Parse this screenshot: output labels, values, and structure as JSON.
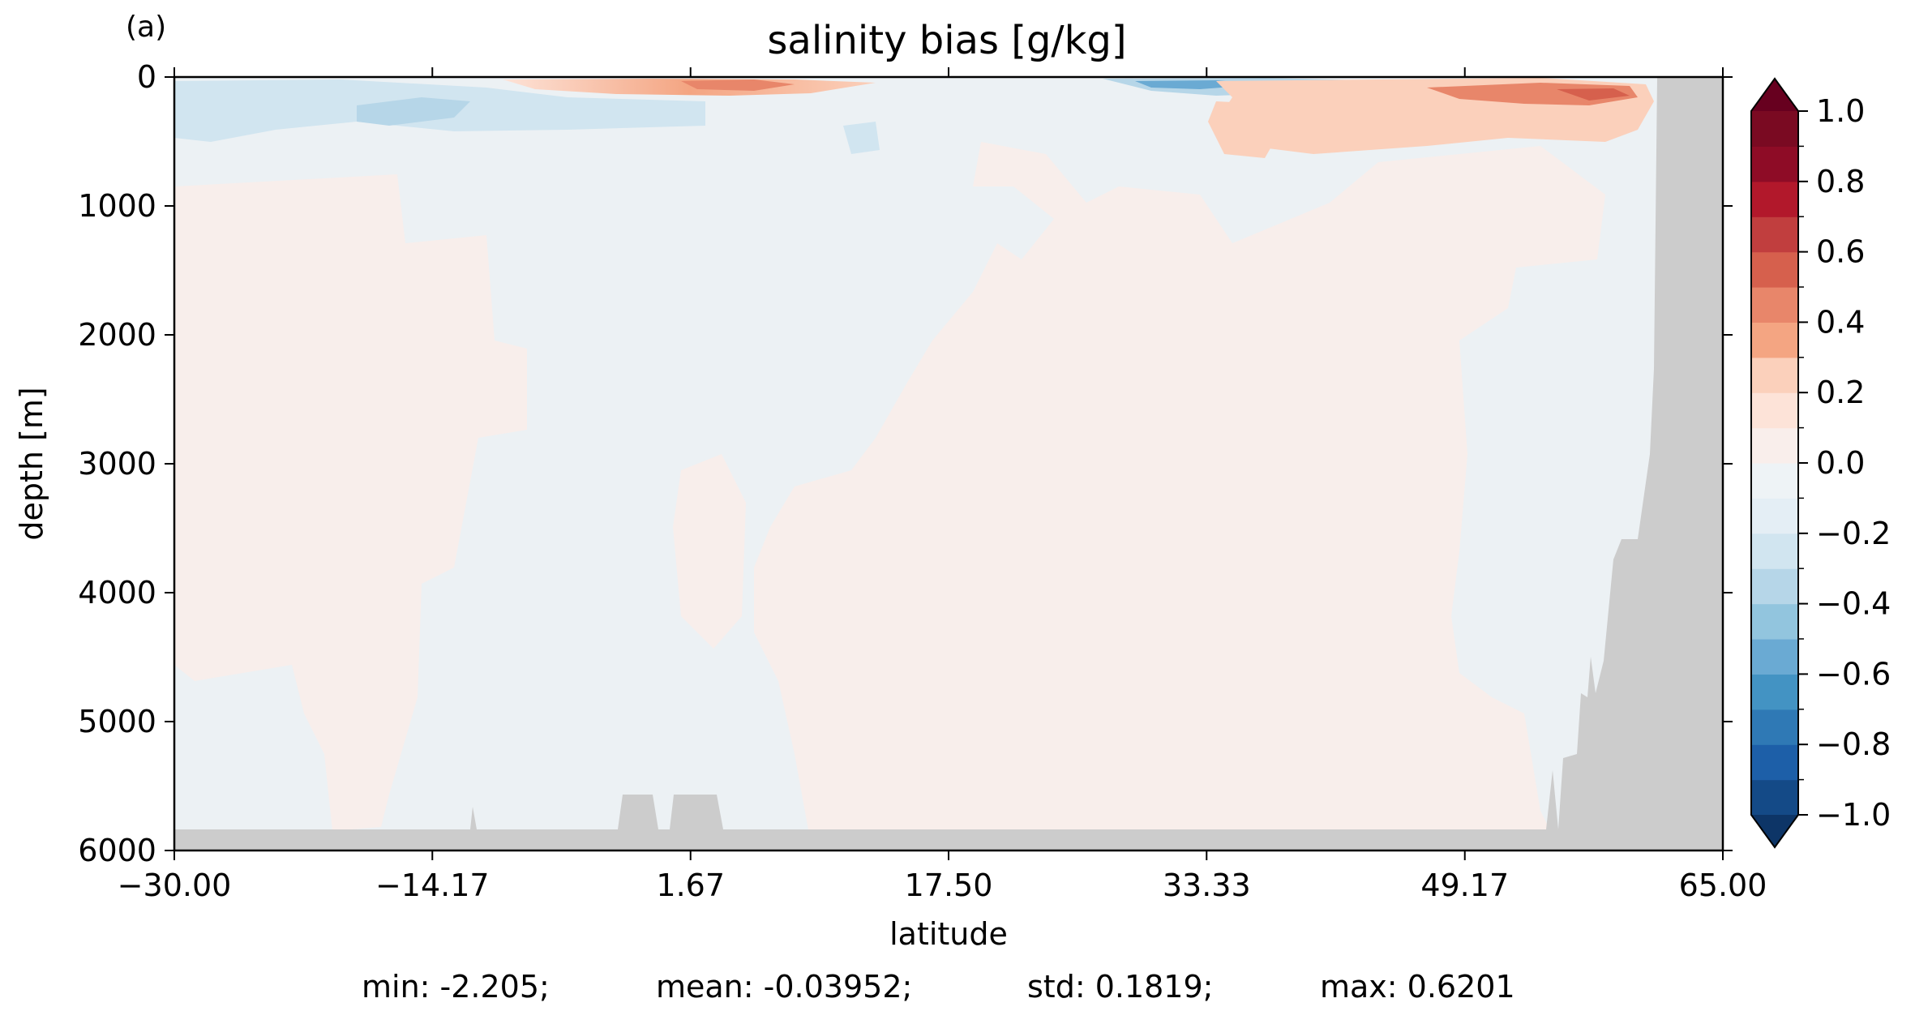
{
  "chart_data": {
    "type": "heatmap",
    "panel_label": "(a)",
    "title": "salinity bias [g/kg]",
    "xlabel": "latitude",
    "ylabel": "depth [m]",
    "xlim": [
      -30.0,
      65.0
    ],
    "ylim": [
      6000,
      0
    ],
    "x_ticks": [
      -30.0,
      -14.17,
      1.67,
      17.5,
      33.33,
      49.17,
      65.0
    ],
    "x_tick_labels": [
      "−30.00",
      "−14.17",
      "1.67",
      "17.50",
      "33.33",
      "49.17",
      "65.00"
    ],
    "y_ticks": [
      0,
      1000,
      2000,
      3000,
      4000,
      5000,
      6000
    ],
    "y_tick_labels": [
      "0",
      "1000",
      "2000",
      "3000",
      "4000",
      "5000",
      "6000"
    ],
    "colorbar": {
      "range": [
        -1.0,
        1.0
      ],
      "extend": "both",
      "levels": [
        -1.0,
        -0.9,
        -0.8,
        -0.7,
        -0.6,
        -0.5,
        -0.4,
        -0.3,
        -0.2,
        -0.1,
        0.0,
        0.1,
        0.2,
        0.3,
        0.4,
        0.5,
        0.6,
        0.7,
        0.8,
        0.9,
        1.0
      ],
      "tick_values": [
        1.0,
        0.8,
        0.6,
        0.4,
        0.2,
        0.0,
        -0.2,
        -0.4,
        -0.6,
        -0.8,
        -1.0
      ],
      "tick_labels": [
        "1.0",
        "0.8",
        "0.6",
        "0.4",
        "0.2",
        "0.0",
        "−0.2",
        "−0.4",
        "−0.6",
        "−0.8",
        "−1.0"
      ],
      "colors": [
        "#144a87",
        "#1d5fa8",
        "#2f79b5",
        "#4393c3",
        "#6aaad3",
        "#92c5de",
        "#b6d6e8",
        "#d1e5f0",
        "#e4eef5",
        "#eef3f6",
        "#f9eeeb",
        "#fde3d8",
        "#fbd0bb",
        "#f4a582",
        "#e8866a",
        "#d6604d",
        "#c13e3e",
        "#b2182b",
        "#8e0c26",
        "#7a0a22"
      ],
      "under_color": "#0d3567",
      "over_color": "#67001f"
    },
    "field_colors": {
      "land_mask": "#cccccc",
      "weak_positive": "#f8eeeb",
      "weak_negative": "#ecf1f4"
    },
    "stats": {
      "min": "min: -2.205;",
      "mean": "mean: -0.03952;",
      "std": "std: 0.1819;",
      "max": "max: 0.6201"
    }
  }
}
